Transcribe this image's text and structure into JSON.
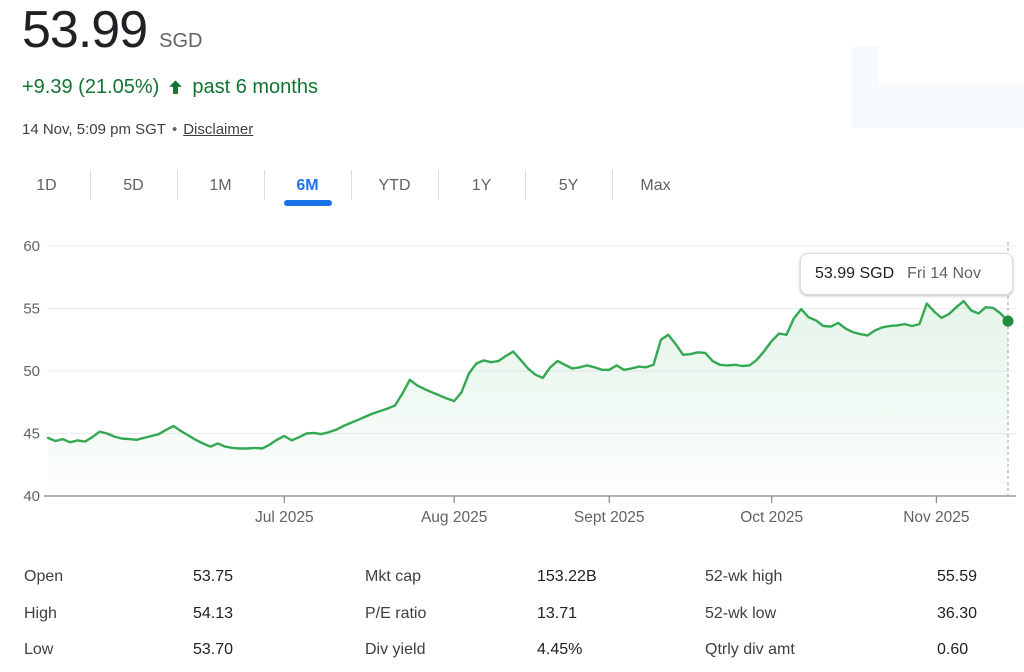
{
  "header": {
    "price": "53.99",
    "currency": "SGD",
    "change": "+9.39 (21.05%)",
    "change_period": "past 6 months",
    "timestamp": "14 Nov, 5:09 pm SGT",
    "separator": "•",
    "disclaimer": "Disclaimer",
    "positive_color": "#137333"
  },
  "tabs": [
    {
      "label": "1D",
      "active": false
    },
    {
      "label": "5D",
      "active": false
    },
    {
      "label": "1M",
      "active": false
    },
    {
      "label": "6M",
      "active": true
    },
    {
      "label": "YTD",
      "active": false
    },
    {
      "label": "1Y",
      "active": false
    },
    {
      "label": "5Y",
      "active": false
    },
    {
      "label": "Max",
      "active": false
    }
  ],
  "tooltip": {
    "price": "53.99 SGD",
    "date": "Fri 14 Nov"
  },
  "chart_data": {
    "type": "line",
    "title": "6-month price history",
    "ylim": [
      40,
      60
    ],
    "y_ticks": [
      60,
      55,
      50,
      45,
      40
    ],
    "x_ticks": [
      {
        "label": "Jul 2025",
        "index": 32
      },
      {
        "label": "Aug 2025",
        "index": 55
      },
      {
        "label": "Sept 2025",
        "index": 76
      },
      {
        "label": "Oct 2025",
        "index": 98
      },
      {
        "label": "Nov 2025",
        "index": 120.3
      }
    ],
    "grid": true,
    "legend": "none",
    "x": [
      "16 May",
      "19 May",
      "20 May",
      "21 May",
      "22 May",
      "23 May",
      "26 May",
      "27 May",
      "28 May",
      "29 May",
      "30 May",
      "2 Jun",
      "3 Jun",
      "4 Jun",
      "5 Jun",
      "6 Jun",
      "9 Jun",
      "10 Jun",
      "11 Jun",
      "12 Jun",
      "13 Jun",
      "16 Jun",
      "17 Jun",
      "18 Jun",
      "19 Jun",
      "20 Jun",
      "23 Jun",
      "24 Jun",
      "25 Jun",
      "26 Jun",
      "27 Jun",
      "30 Jun",
      "1 Jul",
      "2 Jul",
      "3 Jul",
      "4 Jul",
      "7 Jul",
      "8 Jul",
      "9 Jul",
      "10 Jul",
      "11 Jul",
      "14 Jul",
      "15 Jul",
      "16 Jul",
      "17 Jul",
      "18 Jul",
      "21 Jul",
      "22 Jul",
      "23 Jul",
      "24 Jul",
      "25 Jul",
      "28 Jul",
      "29 Jul",
      "30 Jul",
      "31 Jul",
      "1 Aug",
      "4 Aug",
      "5 Aug",
      "6 Aug",
      "7 Aug",
      "8 Aug",
      "11 Aug",
      "12 Aug",
      "13 Aug",
      "14 Aug",
      "15 Aug",
      "18 Aug",
      "19 Aug",
      "20 Aug",
      "21 Aug",
      "22 Aug",
      "25 Aug",
      "26 Aug",
      "27 Aug",
      "28 Aug",
      "29 Aug",
      "1 Sept",
      "2 Sept",
      "3 Sept",
      "4 Sept",
      "5 Sept",
      "8 Sept",
      "9 Sept",
      "10 Sept",
      "11 Sept",
      "12 Sept",
      "15 Sept",
      "16 Sept",
      "17 Sept",
      "18 Sept",
      "19 Sept",
      "22 Sept",
      "23 Sept",
      "24 Sept",
      "25 Sept",
      "26 Sept",
      "29 Sept",
      "30 Sept",
      "1 Oct",
      "2 Oct",
      "3 Oct",
      "6 Oct",
      "7 Oct",
      "8 Oct",
      "9 Oct",
      "10 Oct",
      "13 Oct",
      "14 Oct",
      "15 Oct",
      "16 Oct",
      "17 Oct",
      "20 Oct",
      "21 Oct",
      "22 Oct",
      "23 Oct",
      "24 Oct",
      "27 Oct",
      "28 Oct",
      "29 Oct",
      "30 Oct",
      "31 Oct",
      "3 Nov",
      "4 Nov",
      "5 Nov",
      "6 Nov",
      "7 Nov",
      "10 Nov",
      "11 Nov",
      "12 Nov",
      "13 Nov",
      "14 Nov"
    ],
    "values": [
      44.65,
      44.4,
      44.55,
      44.3,
      44.45,
      44.35,
      44.7,
      45.15,
      45.0,
      44.75,
      44.6,
      44.55,
      44.5,
      44.65,
      44.8,
      44.95,
      45.3,
      45.6,
      45.2,
      44.85,
      44.5,
      44.2,
      43.95,
      44.2,
      43.95,
      43.85,
      43.8,
      43.8,
      43.85,
      43.8,
      44.1,
      44.5,
      44.8,
      44.45,
      44.7,
      45.0,
      45.05,
      44.95,
      45.1,
      45.3,
      45.6,
      45.85,
      46.1,
      46.35,
      46.6,
      46.8,
      47.0,
      47.25,
      48.2,
      49.3,
      48.85,
      48.55,
      48.3,
      48.05,
      47.8,
      47.6,
      48.3,
      49.8,
      50.6,
      50.85,
      50.7,
      50.8,
      51.2,
      51.55,
      50.9,
      50.2,
      49.7,
      49.45,
      50.3,
      50.8,
      50.5,
      50.2,
      50.3,
      50.45,
      50.3,
      50.1,
      50.1,
      50.45,
      50.1,
      50.2,
      50.35,
      50.3,
      50.5,
      52.5,
      52.9,
      52.15,
      51.3,
      51.35,
      51.5,
      51.45,
      50.8,
      50.5,
      50.45,
      50.5,
      50.4,
      50.45,
      50.9,
      51.6,
      52.4,
      53.0,
      52.9,
      54.2,
      54.95,
      54.3,
      54.05,
      53.6,
      53.55,
      53.85,
      53.4,
      53.1,
      52.95,
      52.85,
      53.25,
      53.5,
      53.6,
      53.65,
      53.75,
      53.6,
      53.75,
      55.4,
      54.75,
      54.25,
      54.55,
      55.1,
      55.59,
      54.85,
      54.6,
      55.1,
      55.05,
      54.6,
      53.99
    ],
    "endpoint_value": 53.99,
    "style": {
      "line_color": "#34a853",
      "dot_color": "#1e8e3e",
      "fill_top": "rgba(52,168,83,0.13)",
      "fill_bottom": "rgba(52,168,83,0.01)",
      "grid_color": "#ebedf0",
      "axis_color": "#80868b",
      "label_color": "#5f6368",
      "crosshair_color": "#9aa0a6"
    }
  },
  "stats": {
    "col1": [
      {
        "label": "Open",
        "value": "53.75"
      },
      {
        "label": "High",
        "value": "54.13"
      },
      {
        "label": "Low",
        "value": "53.70"
      }
    ],
    "col2": [
      {
        "label": "Mkt cap",
        "value": "153.22B"
      },
      {
        "label": "P/E ratio",
        "value": "13.71"
      },
      {
        "label": "Div yield",
        "value": "4.45%"
      }
    ],
    "col3": [
      {
        "label": "52-wk high",
        "value": "55.59"
      },
      {
        "label": "52-wk low",
        "value": "36.30"
      },
      {
        "label": "Qtrly div amt",
        "value": "0.60"
      }
    ]
  }
}
